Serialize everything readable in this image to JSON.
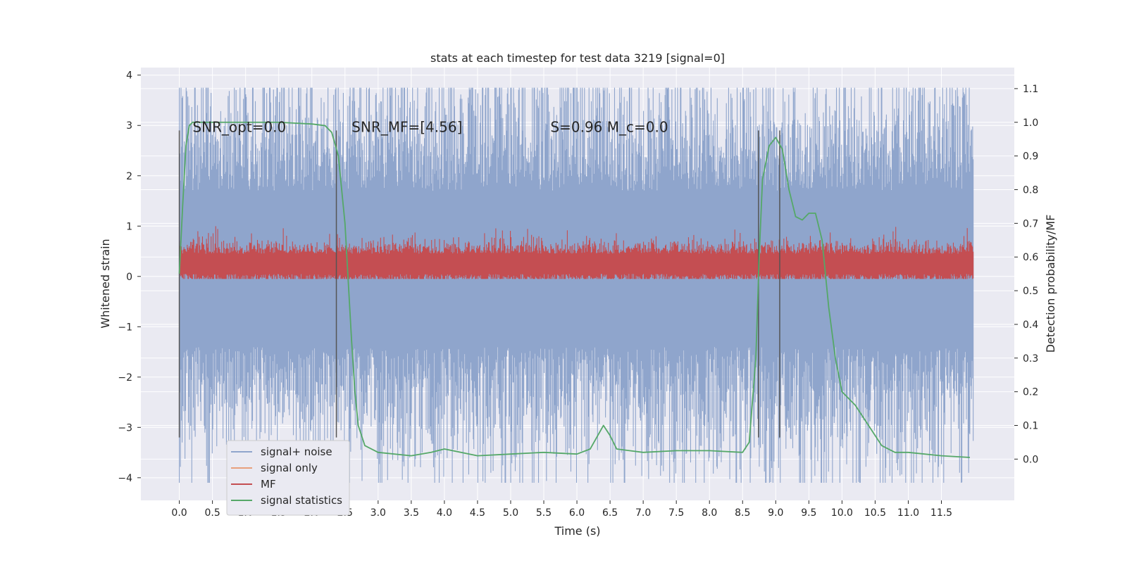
{
  "chart_data": {
    "type": "line",
    "title": "stats at each timestep for test data 3219 [signal=0]",
    "xlabel": "Time (s)",
    "ylabel": "Whitened strain",
    "y2label": "Detection probability/MF",
    "xlim": [
      -0.58,
      12.6
    ],
    "ylim": [
      -4.45,
      4.15
    ],
    "y2lim": [
      -0.1225,
      1.1625
    ],
    "grid": true,
    "legend_position": "lower-left",
    "x_ticks": [
      0.0,
      0.5,
      1.0,
      1.5,
      2.0,
      2.5,
      3.0,
      3.5,
      4.0,
      4.5,
      5.0,
      5.5,
      6.0,
      6.5,
      7.0,
      7.5,
      8.0,
      8.5,
      9.0,
      9.5,
      10.0,
      10.5,
      11.0,
      11.5
    ],
    "x_tick_labels": [
      "0.0",
      "0.5",
      "1.0",
      "1.5",
      "2.0",
      "2.5",
      "3.0",
      "3.5",
      "4.0",
      "4.5",
      "5.0",
      "5.5",
      "6.0",
      "6.5",
      "7.0",
      "7.5",
      "8.0",
      "8.5",
      "9.0",
      "9.5",
      "10.0",
      "10.5",
      "11.0",
      "11.5"
    ],
    "y_ticks": [
      -4,
      -3,
      -2,
      -1,
      0,
      1,
      2,
      3,
      4
    ],
    "y_tick_labels": [
      "−4",
      "−3",
      "−2",
      "−1",
      "0",
      "1",
      "2",
      "3",
      "4"
    ],
    "y2_ticks": [
      0.0,
      0.1,
      0.2,
      0.3,
      0.4,
      0.5,
      0.6,
      0.7,
      0.8,
      0.9,
      1.0,
      1.1
    ],
    "y2_tick_labels": [
      "0.0",
      "0.1",
      "0.2",
      "0.3",
      "0.4",
      "0.5",
      "0.6",
      "0.7",
      "0.8",
      "0.9",
      "1.0",
      "1.1"
    ],
    "annotations": [
      {
        "id": "snr-opt",
        "text": "SNR_opt=0.0",
        "x": 0.2,
        "y": 2.9
      },
      {
        "id": "snr-mf",
        "text": "SNR_MF=[4.56]",
        "x": 2.6,
        "y": 2.9
      },
      {
        "id": "s-mc",
        "text": "S=0.96   M_c=0.0",
        "x": 5.6,
        "y": 2.9
      }
    ],
    "vertical_lines": {
      "x": [
        0.0,
        2.37,
        8.74,
        9.06
      ],
      "ymin": -3.2,
      "ymax": 2.9,
      "color": "#555555"
    },
    "series": [
      {
        "name": "signal+ noise",
        "color": "#8fa5cc",
        "kind": "noise",
        "x_range": [
          0.0,
          11.98
        ],
        "envelope_y": [
          -4.1,
          3.75
        ],
        "typical_band_y": [
          -1.4,
          1.7
        ]
      },
      {
        "name": "signal only",
        "color": "#e8a07c",
        "kind": "line",
        "x": [
          0.0,
          11.98
        ],
        "y": [
          0.0,
          0.0
        ]
      },
      {
        "name": "MF",
        "color": "#c44e52",
        "kind": "noise",
        "x_range": [
          0.0,
          11.98
        ],
        "envelope_y": [
          -0.05,
          1.0
        ],
        "typical_band_y": [
          0.05,
          0.45
        ]
      },
      {
        "name": "signal statistics",
        "color": "#55a868",
        "kind": "line",
        "axis": "right",
        "x": [
          0.0,
          0.05,
          0.1,
          0.15,
          0.2,
          0.3,
          0.5,
          1.0,
          1.5,
          2.0,
          2.2,
          2.3,
          2.4,
          2.5,
          2.6,
          2.65,
          2.7,
          2.8,
          3.0,
          3.5,
          3.8,
          4.0,
          4.5,
          5.0,
          5.5,
          6.0,
          6.2,
          6.4,
          6.5,
          6.6,
          7.0,
          7.5,
          8.0,
          8.5,
          8.6,
          8.7,
          8.75,
          8.8,
          8.9,
          9.0,
          9.1,
          9.2,
          9.3,
          9.4,
          9.5,
          9.6,
          9.7,
          9.8,
          9.9,
          10.0,
          10.2,
          10.4,
          10.6,
          10.8,
          11.0,
          11.5,
          11.93
        ],
        "y": [
          0.55,
          0.75,
          0.93,
          0.99,
          1.0,
          1.0,
          1.0,
          1.0,
          1.0,
          0.995,
          0.99,
          0.97,
          0.9,
          0.7,
          0.35,
          0.2,
          0.1,
          0.04,
          0.02,
          0.01,
          0.02,
          0.03,
          0.01,
          0.015,
          0.02,
          0.015,
          0.03,
          0.1,
          0.07,
          0.03,
          0.02,
          0.025,
          0.025,
          0.02,
          0.05,
          0.3,
          0.6,
          0.83,
          0.93,
          0.955,
          0.92,
          0.8,
          0.72,
          0.71,
          0.73,
          0.73,
          0.65,
          0.45,
          0.3,
          0.2,
          0.16,
          0.1,
          0.04,
          0.02,
          0.02,
          0.01,
          0.005
        ]
      }
    ]
  }
}
